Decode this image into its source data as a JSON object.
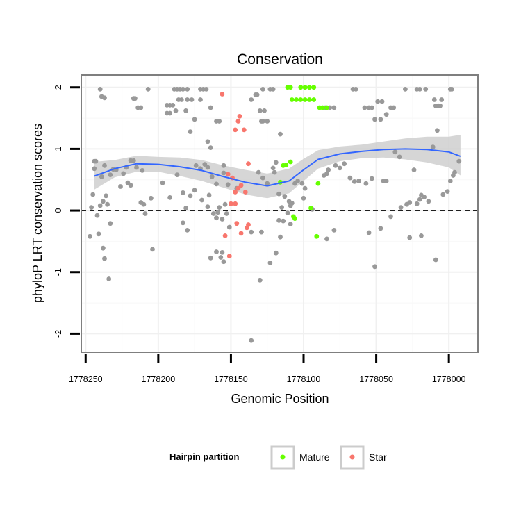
{
  "colors": {
    "panel_border": "#7f7f7f",
    "grid_major": "#f0f0f0",
    "grid_minor": "#f8f8f8",
    "other": "#999999",
    "mature": "#66ff00",
    "star": "#f8766d",
    "smooth_line": "#3366ff",
    "ribbon": "#cccccc",
    "zero_line": "#000000"
  },
  "chart_data": {
    "type": "scatter",
    "title": "Conservation",
    "xlabel": "Genomic Position",
    "ylabel": "phyloP LRT conservation scores",
    "x_reversed": true,
    "xlim": [
      1778253,
      1777980
    ],
    "ylim": [
      -2.3,
      2.2
    ],
    "x_ticks": [
      1778250,
      1778200,
      1778150,
      1778100,
      1778050,
      1778000
    ],
    "y_ticks": [
      -2,
      -1,
      0,
      1,
      2
    ],
    "grid": true,
    "reference_line": {
      "y": 0,
      "style": "dashed"
    },
    "legend": {
      "title": "Hairpin partition",
      "position": "bottom",
      "entries": [
        {
          "label": "Mature",
          "color_key": "mature"
        },
        {
          "label": "Star",
          "color_key": "star"
        }
      ]
    },
    "smooth": {
      "x": [
        1778244,
        1778230,
        1778215,
        1778200,
        1778185,
        1778170,
        1778155,
        1778140,
        1778125,
        1778110,
        1778100,
        1778090,
        1778075,
        1778060,
        1778045,
        1778030,
        1778015,
        1778000,
        1777992
      ],
      "y": [
        0.56,
        0.68,
        0.76,
        0.75,
        0.71,
        0.65,
        0.55,
        0.46,
        0.4,
        0.48,
        0.66,
        0.83,
        0.92,
        0.96,
        0.99,
        1.0,
        0.99,
        0.95,
        0.88
      ],
      "lower": [
        0.34,
        0.54,
        0.63,
        0.63,
        0.56,
        0.48,
        0.37,
        0.26,
        0.2,
        0.28,
        0.48,
        0.68,
        0.8,
        0.85,
        0.86,
        0.83,
        0.78,
        0.7,
        0.57
      ],
      "upper": [
        0.79,
        0.82,
        0.89,
        0.87,
        0.86,
        0.82,
        0.73,
        0.66,
        0.6,
        0.68,
        0.84,
        0.98,
        1.04,
        1.07,
        1.12,
        1.17,
        1.2,
        1.2,
        1.23
      ]
    },
    "series": [
      {
        "name": "Mature",
        "color_key": "mature",
        "points": [
          [
            1778111,
            2.0
          ],
          [
            1778109,
            2.0
          ],
          [
            1778102,
            2.0
          ],
          [
            1778099,
            2.0
          ],
          [
            1778096,
            2.0
          ],
          [
            1778093,
            2.0
          ],
          [
            1778108,
            1.8
          ],
          [
            1778105,
            1.8
          ],
          [
            1778102,
            1.8
          ],
          [
            1778099,
            1.8
          ],
          [
            1778096,
            1.8
          ],
          [
            1778093,
            1.8
          ],
          [
            1778089,
            1.67
          ],
          [
            1778087,
            1.67
          ],
          [
            1778084,
            1.67
          ],
          [
            1778109,
            0.79
          ],
          [
            1778112,
            0.74
          ],
          [
            1778114,
            0.73
          ],
          [
            1778116,
            0.46
          ],
          [
            1778090,
            0.44
          ],
          [
            1778095,
            0.04
          ],
          [
            1778107,
            -0.1
          ],
          [
            1778106,
            -0.13
          ],
          [
            1778091,
            -0.42
          ]
        ]
      },
      {
        "name": "Star",
        "color_key": "star",
        "points": [
          [
            1778156,
            1.89
          ],
          [
            1778144,
            1.53
          ],
          [
            1778145,
            1.45
          ],
          [
            1778141,
            1.31
          ],
          [
            1778147,
            1.31
          ],
          [
            1778138,
            0.76
          ],
          [
            1778152,
            0.59
          ],
          [
            1778149,
            0.53
          ],
          [
            1778143,
            0.41
          ],
          [
            1778145,
            0.36
          ],
          [
            1778147,
            0.3
          ],
          [
            1778140,
            0.3
          ],
          [
            1778150,
            0.11
          ],
          [
            1778147,
            0.11
          ],
          [
            1778146,
            -0.21
          ],
          [
            1778138,
            -0.23
          ],
          [
            1778139,
            -0.28
          ],
          [
            1778143,
            -0.37
          ],
          [
            1778154,
            -0.41
          ],
          [
            1778151,
            -0.74
          ]
        ]
      },
      {
        "name": "",
        "color_key": "other",
        "points": [
          [
            1778240,
            1.97
          ],
          [
            1778239,
            1.85
          ],
          [
            1778237,
            1.83
          ],
          [
            1778217,
            1.82
          ],
          [
            1778216,
            1.82
          ],
          [
            1778214,
            1.67
          ],
          [
            1778212,
            1.67
          ],
          [
            1778207,
            1.97
          ],
          [
            1778189,
            1.97
          ],
          [
            1778187,
            1.97
          ],
          [
            1778185,
            1.97
          ],
          [
            1778183,
            1.97
          ],
          [
            1778180,
            1.97
          ],
          [
            1778171,
            1.97
          ],
          [
            1778169,
            1.97
          ],
          [
            1778167,
            1.97
          ],
          [
            1778186,
            1.8
          ],
          [
            1778184,
            1.8
          ],
          [
            1778180,
            1.8
          ],
          [
            1778177,
            1.8
          ],
          [
            1778171,
            1.8
          ],
          [
            1778194,
            1.71
          ],
          [
            1778192,
            1.71
          ],
          [
            1778190,
            1.71
          ],
          [
            1778188,
            1.62
          ],
          [
            1778194,
            1.58
          ],
          [
            1778192,
            1.58
          ],
          [
            1778181,
            1.62
          ],
          [
            1778175,
            1.48
          ],
          [
            1778178,
            1.28
          ],
          [
            1778164,
            1.67
          ],
          [
            1778160,
            1.45
          ],
          [
            1778158,
            1.45
          ],
          [
            1778166,
            1.12
          ],
          [
            1778164,
            1.02
          ],
          [
            1778136,
            1.8
          ],
          [
            1778133,
            1.88
          ],
          [
            1778132,
            1.88
          ],
          [
            1778130,
            1.62
          ],
          [
            1778127,
            1.62
          ],
          [
            1778129,
            1.45
          ],
          [
            1778128,
            1.45
          ],
          [
            1778125,
            1.45
          ],
          [
            1778128,
            1.97
          ],
          [
            1778123,
            1.97
          ],
          [
            1778121,
            1.97
          ],
          [
            1778116,
            1.24
          ],
          [
            1778085,
            1.67
          ],
          [
            1778082,
            1.67
          ],
          [
            1778079,
            1.67
          ],
          [
            1778066,
            1.97
          ],
          [
            1778064,
            1.97
          ],
          [
            1778058,
            1.67
          ],
          [
            1778055,
            1.67
          ],
          [
            1778053,
            1.67
          ],
          [
            1778049,
            1.77
          ],
          [
            1778046,
            1.77
          ],
          [
            1778051,
            1.48
          ],
          [
            1778047,
            1.48
          ],
          [
            1778043,
            1.56
          ],
          [
            1778040,
            1.67
          ],
          [
            1778038,
            1.67
          ],
          [
            1778030,
            1.97
          ],
          [
            1778022,
            1.97
          ],
          [
            1778020,
            1.97
          ],
          [
            1778016,
            1.97
          ],
          [
            1778009,
            1.7
          ],
          [
            1778007,
            1.7
          ],
          [
            1778006,
            1.7
          ],
          [
            1778010,
            1.8
          ],
          [
            1778005,
            1.8
          ],
          [
            1777999,
            1.97
          ],
          [
            1777998,
            1.97
          ],
          [
            1778008,
            1.3
          ],
          [
            1778244,
            0.8
          ],
          [
            1778243,
            0.8
          ],
          [
            1778244,
            0.68
          ],
          [
            1778237,
            0.73
          ],
          [
            1778239,
            0.55
          ],
          [
            1778233,
            0.58
          ],
          [
            1778231,
            0.67
          ],
          [
            1778229,
            0.66
          ],
          [
            1778222,
            0.7
          ],
          [
            1778219,
            0.81
          ],
          [
            1778217,
            0.81
          ],
          [
            1778215,
            0.7
          ],
          [
            1778211,
            0.65
          ],
          [
            1778221,
            0.45
          ],
          [
            1778224,
            0.6
          ],
          [
            1778226,
            0.39
          ],
          [
            1778236,
            0.24
          ],
          [
            1778238,
            0.15
          ],
          [
            1778240,
            0.08
          ],
          [
            1778245,
            0.26
          ],
          [
            1778246,
            0.05
          ],
          [
            1778242,
            -0.08
          ],
          [
            1778235,
            0.1
          ],
          [
            1778219,
            0.41
          ],
          [
            1778212,
            0.13
          ],
          [
            1778210,
            0.1
          ],
          [
            1778209,
            -0.05
          ],
          [
            1778205,
            0.2
          ],
          [
            1778197,
            0.45
          ],
          [
            1778192,
            0.21
          ],
          [
            1778187,
            0.58
          ],
          [
            1778183,
            0.29
          ],
          [
            1778181,
            0.04
          ],
          [
            1778178,
            0.24
          ],
          [
            1778175,
            0.33
          ],
          [
            1778174,
            0.73
          ],
          [
            1778171,
            0.68
          ],
          [
            1778168,
            0.75
          ],
          [
            1778166,
            0.7
          ],
          [
            1778165,
            0.25
          ],
          [
            1778163,
            0.55
          ],
          [
            1778160,
            0.43
          ],
          [
            1778155,
            0.73
          ],
          [
            1778155,
            0.61
          ],
          [
            1778170,
            0.17
          ],
          [
            1778166,
            0.06
          ],
          [
            1778162,
            -0.05
          ],
          [
            1778159,
            -0.03
          ],
          [
            1778160,
            -0.12
          ],
          [
            1778158,
            0.05
          ],
          [
            1778156,
            -0.14
          ],
          [
            1778154,
            0.1
          ],
          [
            1778152,
            0.42
          ],
          [
            1778146,
            0.36
          ],
          [
            1778131,
            0.62
          ],
          [
            1778128,
            0.53
          ],
          [
            1778125,
            0.44
          ],
          [
            1778119,
            0.78
          ],
          [
            1778121,
            0.69
          ],
          [
            1778120,
            0.62
          ],
          [
            1778117,
            0.27
          ],
          [
            1778113,
            0.23
          ],
          [
            1778110,
            0.15
          ],
          [
            1778109,
            0.08
          ],
          [
            1778108,
            0.12
          ],
          [
            1778106,
            0.44
          ],
          [
            1778104,
            0.48
          ],
          [
            1778101,
            0.44
          ],
          [
            1778099,
            0.36
          ],
          [
            1778115,
            0.05
          ],
          [
            1778111,
            -0.04
          ],
          [
            1778109,
            -0.22
          ],
          [
            1778100,
            0.2
          ],
          [
            1778094,
            0.02
          ],
          [
            1778086,
            0.57
          ],
          [
            1778084,
            0.6
          ],
          [
            1778083,
            0.66
          ],
          [
            1778078,
            0.73
          ],
          [
            1778075,
            0.69
          ],
          [
            1778072,
            0.76
          ],
          [
            1778068,
            0.53
          ],
          [
            1778065,
            0.47
          ],
          [
            1778062,
            0.48
          ],
          [
            1778057,
            0.44
          ],
          [
            1778053,
            0.52
          ],
          [
            1778045,
            0.48
          ],
          [
            1778043,
            0.48
          ],
          [
            1778037,
            0.95
          ],
          [
            1778034,
            0.87
          ],
          [
            1778024,
            0.66
          ],
          [
            1778019,
            0.25
          ],
          [
            1778017,
            0.22
          ],
          [
            1778022,
            0.11
          ],
          [
            1778020,
            0.18
          ],
          [
            1778014,
            0.15
          ],
          [
            1778011,
            1.03
          ],
          [
            1778004,
            0.26
          ],
          [
            1778001,
            0.31
          ],
          [
            1777999,
            0.48
          ],
          [
            1777997,
            0.57
          ],
          [
            1777996,
            0.62
          ],
          [
            1777993,
            0.8
          ],
          [
            1778027,
            0.13
          ],
          [
            1778033,
            0.05
          ],
          [
            1778029,
            0.1
          ],
          [
            1778040,
            -0.1
          ],
          [
            1778047,
            -0.29
          ],
          [
            1778055,
            -0.36
          ],
          [
            1778051,
            -0.91
          ],
          [
            1778027,
            -0.44
          ],
          [
            1778019,
            -0.41
          ],
          [
            1778009,
            -0.8
          ],
          [
            1778079,
            -0.32
          ],
          [
            1778084,
            -0.46
          ],
          [
            1778117,
            -0.16
          ],
          [
            1778114,
            -0.17
          ],
          [
            1778116,
            -0.43
          ],
          [
            1778119,
            -0.69
          ],
          [
            1778123,
            -0.85
          ],
          [
            1778247,
            -0.42
          ],
          [
            1778241,
            -0.38
          ],
          [
            1778238,
            -0.61
          ],
          [
            1778237,
            -0.78
          ],
          [
            1778234,
            -1.11
          ],
          [
            1778233,
            -0.21
          ],
          [
            1778204,
            -0.63
          ],
          [
            1778164,
            -0.77
          ],
          [
            1778160,
            -0.67
          ],
          [
            1778157,
            -0.76
          ],
          [
            1778155,
            -0.83
          ],
          [
            1778156,
            -0.68
          ],
          [
            1778151,
            -0.27
          ],
          [
            1778136,
            -0.35
          ],
          [
            1778130,
            -1.13
          ],
          [
            1778129,
            -0.35
          ],
          [
            1778136,
            -2.11
          ],
          [
            1778183,
            -0.2
          ],
          [
            1778180,
            -0.32
          ],
          [
            1778153,
            -0.05
          ]
        ]
      }
    ]
  }
}
